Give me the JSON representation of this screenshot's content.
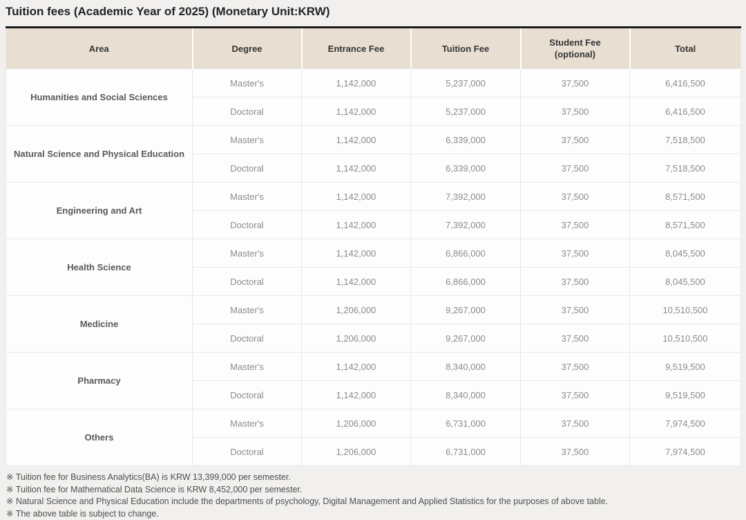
{
  "title": "Tuition fees (Academic Year of 2025) (Monetary Unit:KRW)",
  "table": {
    "header": {
      "area": "Area",
      "degree": "Degree",
      "entrance_fee": "Entrance Fee",
      "tuition_fee": "Tuition Fee",
      "student_fee_line1": "Student Fee",
      "student_fee_line2": "(optional)",
      "total": "Total"
    },
    "groups": [
      {
        "area": "Humanities and Social Sciences",
        "rows": [
          {
            "degree": "Master's",
            "entrance_fee": "1,142,000",
            "tuition_fee": "5,237,000",
            "student_fee": "37,500",
            "total": "6,416,500"
          },
          {
            "degree": "Doctoral",
            "entrance_fee": "1,142,000",
            "tuition_fee": "5,237,000",
            "student_fee": "37,500",
            "total": "6,416,500"
          }
        ]
      },
      {
        "area": "Natural Science and Physical Education",
        "rows": [
          {
            "degree": "Master's",
            "entrance_fee": "1,142,000",
            "tuition_fee": "6,339,000",
            "student_fee": "37,500",
            "total": "7,518,500"
          },
          {
            "degree": "Doctoral",
            "entrance_fee": "1,142,000",
            "tuition_fee": "6,339,000",
            "student_fee": "37,500",
            "total": "7,518,500"
          }
        ]
      },
      {
        "area": "Engineering and Art",
        "rows": [
          {
            "degree": "Master's",
            "entrance_fee": "1,142,000",
            "tuition_fee": "7,392,000",
            "student_fee": "37,500",
            "total": "8,571,500"
          },
          {
            "degree": "Doctoral",
            "entrance_fee": "1,142,000",
            "tuition_fee": "7,392,000",
            "student_fee": "37,500",
            "total": "8,571,500"
          }
        ]
      },
      {
        "area": "Health Science",
        "rows": [
          {
            "degree": "Master's",
            "entrance_fee": "1,142,000",
            "tuition_fee": "6,866,000",
            "student_fee": "37,500",
            "total": "8,045,500"
          },
          {
            "degree": "Doctoral",
            "entrance_fee": "1,142,000",
            "tuition_fee": "6,866,000",
            "student_fee": "37,500",
            "total": "8,045,500"
          }
        ]
      },
      {
        "area": "Medicine",
        "rows": [
          {
            "degree": "Master's",
            "entrance_fee": "1,206,000",
            "tuition_fee": "9,267,000",
            "student_fee": "37,500",
            "total": "10,510,500"
          },
          {
            "degree": "Doctoral",
            "entrance_fee": "1,206,000",
            "tuition_fee": "9,267,000",
            "student_fee": "37,500",
            "total": "10,510,500"
          }
        ]
      },
      {
        "area": "Pharmacy",
        "rows": [
          {
            "degree": "Master's",
            "entrance_fee": "1,142,000",
            "tuition_fee": "8,340,000",
            "student_fee": "37,500",
            "total": "9,519,500"
          },
          {
            "degree": "Doctoral",
            "entrance_fee": "1,142,000",
            "tuition_fee": "8,340,000",
            "student_fee": "37,500",
            "total": "9,519,500"
          }
        ]
      },
      {
        "area": "Others",
        "rows": [
          {
            "degree": "Master's",
            "entrance_fee": "1,206,000",
            "tuition_fee": "6,731,000",
            "student_fee": "37,500",
            "total": "7,974,500"
          },
          {
            "degree": "Doctoral",
            "entrance_fee": "1,206,000",
            "tuition_fee": "6,731,000",
            "student_fee": "37,500",
            "total": "7,974,500"
          }
        ]
      }
    ]
  },
  "footnotes": [
    "※ Tuition fee for Business Analytics(BA) is KRW 13,399,000 per semester.",
    "※ Tuition fee for Mathematical Data Science is KRW 8,452,000 per semester.",
    "※ Natural Science and Physical Education include the departments of psychology, Digital Management and Applied Statistics for the purposes of above table.",
    "※ The above table is subject to change."
  ],
  "colors": {
    "page_bg": "#f1f0ee",
    "header_bg": "#e8dfd2",
    "header_divider": "#ffffff",
    "top_border": "#1a1a1a",
    "row_border": "#e8e8e8",
    "body_bg": "#fdfdfd",
    "title_color": "#222222",
    "header_text": "#333333",
    "area_text": "#595959",
    "cell_text": "#8b8b8b",
    "footnote_text": "#4e4e4e"
  }
}
